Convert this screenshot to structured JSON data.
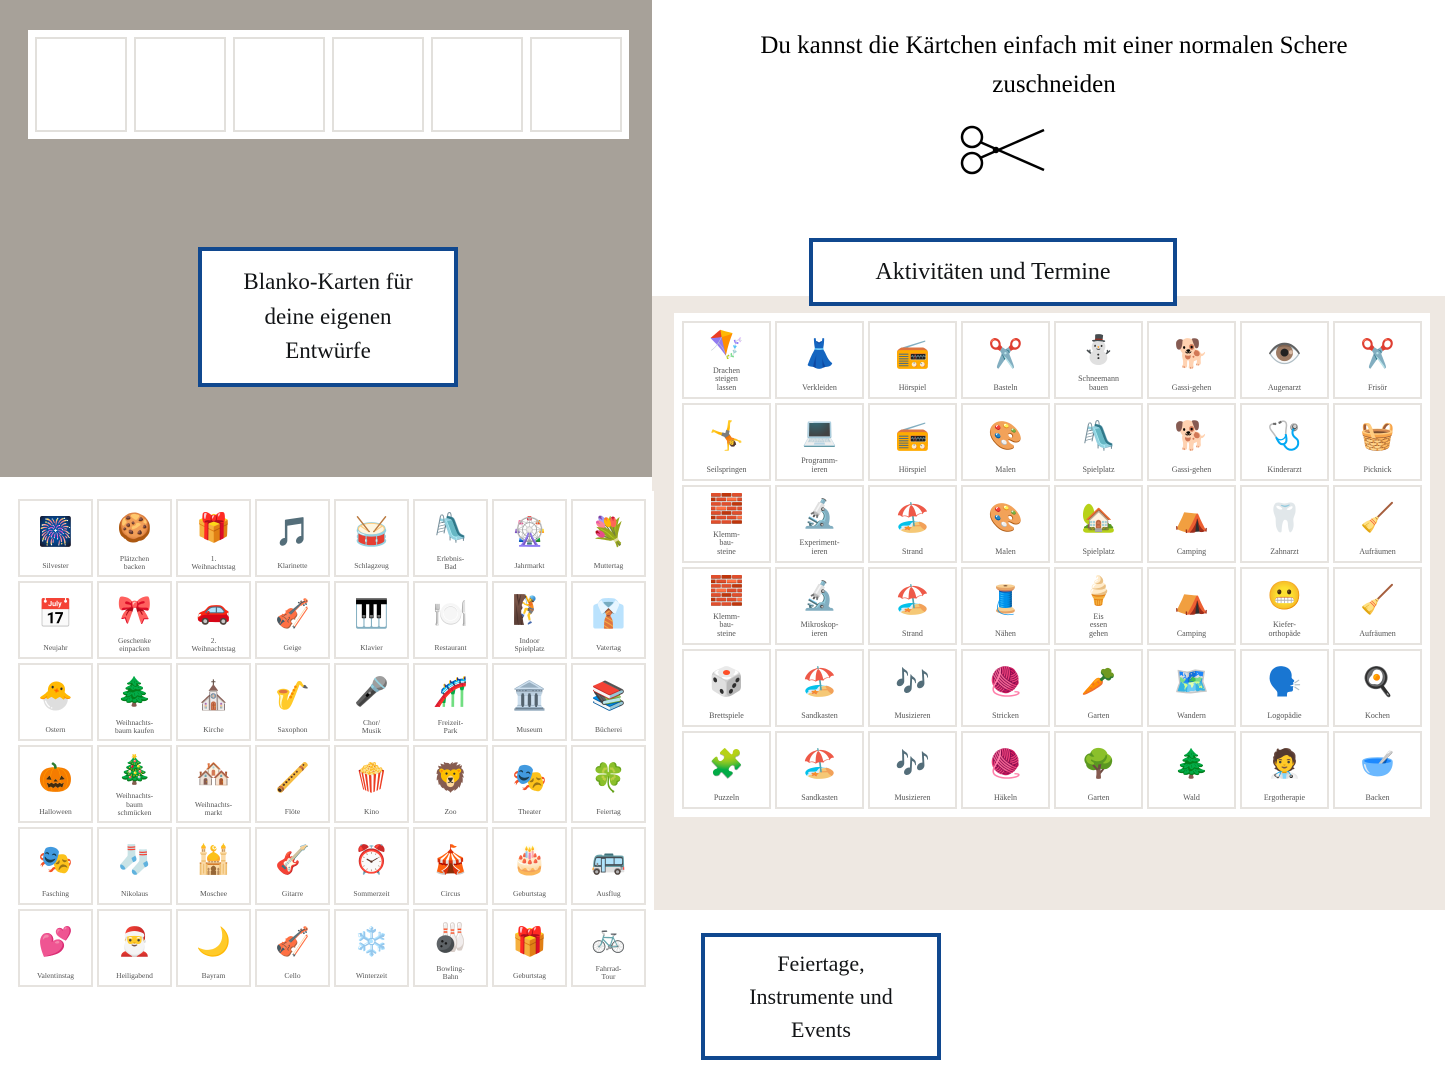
{
  "colors": {
    "box_border": "#10488f",
    "box_bg": "#ffffff",
    "tl_bg": "#a7a199",
    "mr_bg": "#eee8e2",
    "card_border": "#e6e3df",
    "text_dark": "#121416"
  },
  "labels": {
    "blanko": "Blanko-Karten\nfür deine eigenen\nEntwürfe",
    "aktivitaeten": "Aktivitäten und Termine",
    "feiertage": "Feiertage,\nInstrumente und\nEvents",
    "scissors_text": "Du kannst die Kärtchen einfach mit\neiner normalen Schere zuschneiden"
  },
  "left_grid": [
    {
      "label": "Silvester",
      "icon": "🎆"
    },
    {
      "label": "Plätzchen\nbacken",
      "icon": "🍪"
    },
    {
      "label": "1.\nWeihnachtstag",
      "icon": "🎁"
    },
    {
      "label": "Klarinette",
      "icon": "🎵"
    },
    {
      "label": "Schlagzeug",
      "icon": "🥁"
    },
    {
      "label": "Erlebnis-\nBad",
      "icon": "🛝"
    },
    {
      "label": "Jahrmarkt",
      "icon": "🎡"
    },
    {
      "label": "Muttertag",
      "icon": "💐"
    },
    {
      "label": "Neujahr",
      "icon": "📅"
    },
    {
      "label": "Geschenke\neinpacken",
      "icon": "🎀"
    },
    {
      "label": "2.\nWeihnachtstag",
      "icon": "🚗"
    },
    {
      "label": "Geige",
      "icon": "🎻"
    },
    {
      "label": "Klavier",
      "icon": "🎹"
    },
    {
      "label": "Restaurant",
      "icon": "🍽️"
    },
    {
      "label": "Indoor\nSpielplatz",
      "icon": "🧗"
    },
    {
      "label": "Vatertag",
      "icon": "👔"
    },
    {
      "label": "Ostern",
      "icon": "🐣"
    },
    {
      "label": "Weihnachts-\nbaum kaufen",
      "icon": "🌲"
    },
    {
      "label": "Kirche",
      "icon": "⛪"
    },
    {
      "label": "Saxophon",
      "icon": "🎷"
    },
    {
      "label": "Chor/\nMusik",
      "icon": "🎤"
    },
    {
      "label": "Freizeit-\nPark",
      "icon": "🎢"
    },
    {
      "label": "Museum",
      "icon": "🏛️"
    },
    {
      "label": "Bücherei",
      "icon": "📚"
    },
    {
      "label": "Halloween",
      "icon": "🎃"
    },
    {
      "label": "Weihnachts-\nbaum\nschmücken",
      "icon": "🎄"
    },
    {
      "label": "Weihnachts-\nmarkt",
      "icon": "🏘️"
    },
    {
      "label": "Flöte",
      "icon": "🪈"
    },
    {
      "label": "Kino",
      "icon": "🍿"
    },
    {
      "label": "Zoo",
      "icon": "🦁"
    },
    {
      "label": "Theater",
      "icon": "🎭"
    },
    {
      "label": "Feiertag",
      "icon": "🍀"
    },
    {
      "label": "Fasching",
      "icon": "🎭"
    },
    {
      "label": "Nikolaus",
      "icon": "🧦"
    },
    {
      "label": "Moschee",
      "icon": "🕌"
    },
    {
      "label": "Gitarre",
      "icon": "🎸"
    },
    {
      "label": "Sommerzeit",
      "icon": "⏰"
    },
    {
      "label": "Circus",
      "icon": "🎪"
    },
    {
      "label": "Geburtstag",
      "icon": "🎂"
    },
    {
      "label": "Ausflug",
      "icon": "🚌"
    },
    {
      "label": "Valentinstag",
      "icon": "💕"
    },
    {
      "label": "Heiligabend",
      "icon": "🎅"
    },
    {
      "label": "Bayram",
      "icon": "🌙"
    },
    {
      "label": "Cello",
      "icon": "🎻"
    },
    {
      "label": "Winterzeit",
      "icon": "❄️"
    },
    {
      "label": "Bowling-\nBahn",
      "icon": "🎳"
    },
    {
      "label": "Geburtstag",
      "icon": "🎁"
    },
    {
      "label": "Fahrrad-\nTour",
      "icon": "🚲"
    }
  ],
  "right_grid": [
    {
      "label": "Drachen\nsteigen\nlassen",
      "icon": "🪁"
    },
    {
      "label": "Verkleiden",
      "icon": "👗"
    },
    {
      "label": "Hörspiel",
      "icon": "📻"
    },
    {
      "label": "Basteln",
      "icon": "✂️"
    },
    {
      "label": "Schneemann\nbauen",
      "icon": "⛄"
    },
    {
      "label": "Gassi-gehen",
      "icon": "🐕"
    },
    {
      "label": "Augenarzt",
      "icon": "👁️"
    },
    {
      "label": "Frisör",
      "icon": "✂️"
    },
    {
      "label": "Seilspringen",
      "icon": "🤸"
    },
    {
      "label": "Programm-\nieren",
      "icon": "💻"
    },
    {
      "label": "Hörspiel",
      "icon": "📻"
    },
    {
      "label": "Malen",
      "icon": "🎨"
    },
    {
      "label": "Spielplatz",
      "icon": "🛝"
    },
    {
      "label": "Gassi-gehen",
      "icon": "🐕"
    },
    {
      "label": "Kinderarzt",
      "icon": "🩺"
    },
    {
      "label": "Picknick",
      "icon": "🧺"
    },
    {
      "label": "Klemm-\nbau-\nsteine",
      "icon": "🧱"
    },
    {
      "label": "Experiment-\nieren",
      "icon": "🔬"
    },
    {
      "label": "Strand",
      "icon": "🏖️"
    },
    {
      "label": "Malen",
      "icon": "🎨"
    },
    {
      "label": "Spielplatz",
      "icon": "🏡"
    },
    {
      "label": "Camping",
      "icon": "⛺"
    },
    {
      "label": "Zahnarzt",
      "icon": "🦷"
    },
    {
      "label": "Aufräumen",
      "icon": "🧹"
    },
    {
      "label": "Klemm-\nbau-\nsteine",
      "icon": "🧱"
    },
    {
      "label": "Mikroskop-\nieren",
      "icon": "🔬"
    },
    {
      "label": "Strand",
      "icon": "🏖️"
    },
    {
      "label": "Nähen",
      "icon": "🧵"
    },
    {
      "label": "Eis\nessen\ngehen",
      "icon": "🍦"
    },
    {
      "label": "Camping",
      "icon": "⛺"
    },
    {
      "label": "Kiefer-\northopäde",
      "icon": "😬"
    },
    {
      "label": "Aufräumen",
      "icon": "🧹"
    },
    {
      "label": "Brettspiele",
      "icon": "🎲"
    },
    {
      "label": "Sandkasten",
      "icon": "🏖️"
    },
    {
      "label": "Musizieren",
      "icon": "🎶"
    },
    {
      "label": "Stricken",
      "icon": "🧶"
    },
    {
      "label": "Garten",
      "icon": "🥕"
    },
    {
      "label": "Wandern",
      "icon": "🗺️"
    },
    {
      "label": "Logopädie",
      "icon": "🗣️"
    },
    {
      "label": "Kochen",
      "icon": "🍳"
    },
    {
      "label": "Puzzeln",
      "icon": "🧩"
    },
    {
      "label": "Sandkasten",
      "icon": "🏖️"
    },
    {
      "label": "Musizieren",
      "icon": "🎶"
    },
    {
      "label": "Häkeln",
      "icon": "🧶"
    },
    {
      "label": "Garten",
      "icon": "🌳"
    },
    {
      "label": "Wald",
      "icon": "🌲"
    },
    {
      "label": "Ergotherapie",
      "icon": "🧑‍⚕️"
    },
    {
      "label": "Backen",
      "icon": "🥣"
    }
  ]
}
